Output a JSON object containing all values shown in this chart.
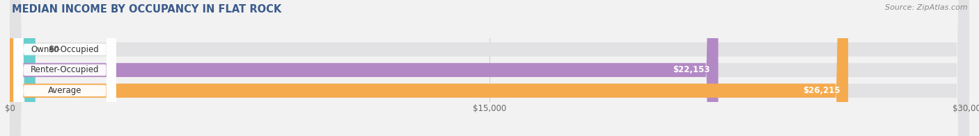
{
  "title": "MEDIAN INCOME BY OCCUPANCY IN FLAT ROCK",
  "source": "Source: ZipAtlas.com",
  "categories": [
    "Owner-Occupied",
    "Renter-Occupied",
    "Average"
  ],
  "values": [
    0,
    22153,
    26215
  ],
  "bar_colors": [
    "#69cece",
    "#b389c5",
    "#f5aa4e"
  ],
  "value_labels": [
    "$0",
    "$22,153",
    "$26,215"
  ],
  "xlim": [
    0,
    30000
  ],
  "xticks": [
    0,
    15000,
    30000
  ],
  "xtick_labels": [
    "$0",
    "$15,000",
    "$30,000"
  ],
  "bg_color": "#f2f2f2",
  "bar_bg_color": "#e2e2e4",
  "title_fontsize": 10.5,
  "label_fontsize": 8.5,
  "value_fontsize": 8.5,
  "source_fontsize": 8,
  "bar_height": 0.68,
  "figsize": [
    14.06,
    1.96
  ],
  "dpi": 100
}
